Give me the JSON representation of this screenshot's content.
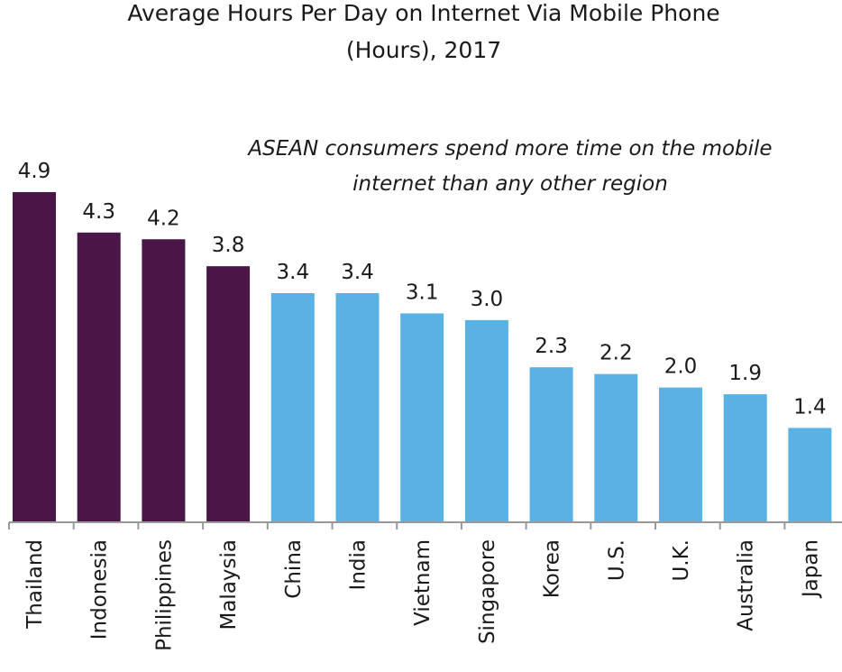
{
  "chart_data": {
    "type": "bar",
    "title_line1": "Average Hours Per Day on Internet Via Mobile Phone",
    "title_line2": "(Hours), 2017",
    "annotation_line1": "ASEAN consumers spend more time on the mobile",
    "annotation_line2": "internet than any other region",
    "categories": [
      "Thailand",
      "Indonesia",
      "Philippines",
      "Malaysia",
      "China",
      "India",
      "Vietnam",
      "Singapore",
      "Korea",
      "U.S.",
      "U.K.",
      "Australia",
      "Japan"
    ],
    "values": [
      4.9,
      4.3,
      4.2,
      3.8,
      3.4,
      3.4,
      3.1,
      3.0,
      2.3,
      2.2,
      2.0,
      1.9,
      1.4
    ],
    "value_labels": [
      "4.9",
      "4.3",
      "4.2",
      "3.8",
      "3.4",
      "3.4",
      "3.1",
      "3.0",
      "2.3",
      "2.2",
      "2.0",
      "1.9",
      "1.4"
    ],
    "highlight_count": 4,
    "colors": {
      "highlight": "#4a1547",
      "default": "#5ab1e3",
      "axis": "#999999"
    },
    "ylim": [
      0,
      5
    ],
    "grid": false,
    "legend": "none"
  }
}
